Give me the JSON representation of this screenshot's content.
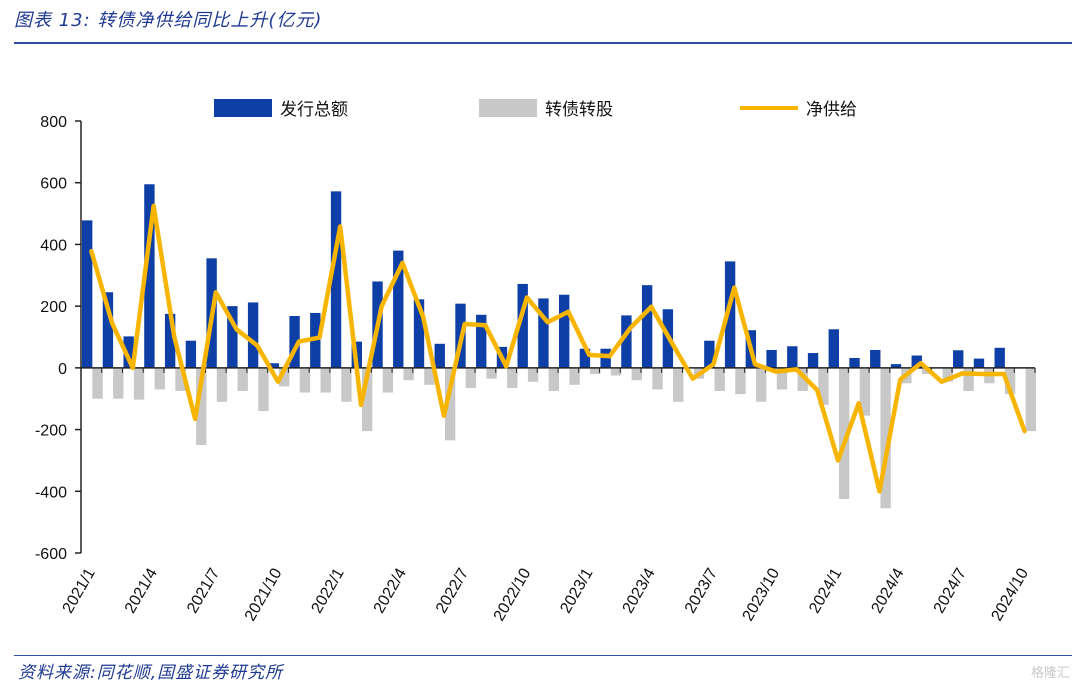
{
  "header": {
    "title": "图表 13:  转债净供给同比上升(亿元)"
  },
  "footer": {
    "source": "资料来源:同花顺,国盛证券研究所",
    "watermark": "格隆汇"
  },
  "colors": {
    "issue": "#0d3fa6",
    "conversion": "#c8c8c8",
    "net": "#f7b500",
    "accent": "#1f3a93"
  },
  "chart_data": {
    "type": "bar",
    "ylim": [
      -600,
      800
    ],
    "yticks": [
      800,
      600,
      400,
      200,
      0,
      -200,
      -400,
      -600
    ],
    "categories": [
      "2021/1",
      "2021/2",
      "2021/3",
      "2021/4",
      "2021/5",
      "2021/6",
      "2021/7",
      "2021/8",
      "2021/9",
      "2021/10",
      "2021/11",
      "2021/12",
      "2022/1",
      "2022/2",
      "2022/3",
      "2022/4",
      "2022/5",
      "2022/6",
      "2022/7",
      "2022/8",
      "2022/9",
      "2022/10",
      "2022/11",
      "2022/12",
      "2023/1",
      "2023/2",
      "2023/3",
      "2023/4",
      "2023/5",
      "2023/6",
      "2023/7",
      "2023/8",
      "2023/9",
      "2023/10",
      "2023/11",
      "2023/12",
      "2024/1",
      "2024/2",
      "2024/3",
      "2024/4",
      "2024/5",
      "2024/6",
      "2024/7",
      "2024/8",
      "2024/9",
      "2024/10"
    ],
    "xticklabels": [
      "2021/1",
      "2021/4",
      "2021/7",
      "2021/10",
      "2022/1",
      "2022/4",
      "2022/7",
      "2022/10",
      "2023/1",
      "2023/4",
      "2023/7",
      "2023/10",
      "2024/1",
      "2024/4",
      "2024/7",
      "2024/10"
    ],
    "series": [
      {
        "name": "发行总额",
        "type": "bar",
        "values": [
          478,
          245,
          102,
          595,
          175,
          88,
          355,
          200,
          212,
          15,
          168,
          178,
          572,
          85,
          280,
          380,
          222,
          78,
          208,
          172,
          68,
          272,
          225,
          237,
          62,
          62,
          170,
          268,
          190,
          0,
          88,
          345,
          122,
          58,
          70,
          48,
          125,
          32,
          58,
          12,
          40,
          0,
          57,
          30,
          65,
          0
        ]
      },
      {
        "name": "转债转股",
        "type": "bar",
        "values": [
          -100,
          -100,
          -103,
          -70,
          -75,
          -250,
          -110,
          -75,
          -140,
          -60,
          -80,
          -80,
          -110,
          -205,
          -80,
          -40,
          -55,
          -235,
          -65,
          -35,
          -65,
          -45,
          -75,
          -55,
          -20,
          -25,
          -40,
          -70,
          -110,
          -35,
          -75,
          -85,
          -110,
          -70,
          -75,
          -120,
          -425,
          -155,
          -455,
          -50,
          -20,
          -45,
          -75,
          -50,
          -85,
          -205
        ]
      },
      {
        "name": "净供给",
        "type": "line",
        "values": [
          378,
          145,
          0,
          525,
          100,
          -165,
          245,
          125,
          72,
          -45,
          85,
          98,
          458,
          -120,
          200,
          340,
          165,
          -155,
          142,
          138,
          5,
          228,
          148,
          182,
          42,
          38,
          130,
          198,
          80,
          -35,
          12,
          260,
          12,
          -12,
          -5,
          -72,
          -300,
          -115,
          -400,
          -38,
          15,
          -45,
          -18,
          -20,
          -20,
          -205
        ]
      }
    ]
  }
}
